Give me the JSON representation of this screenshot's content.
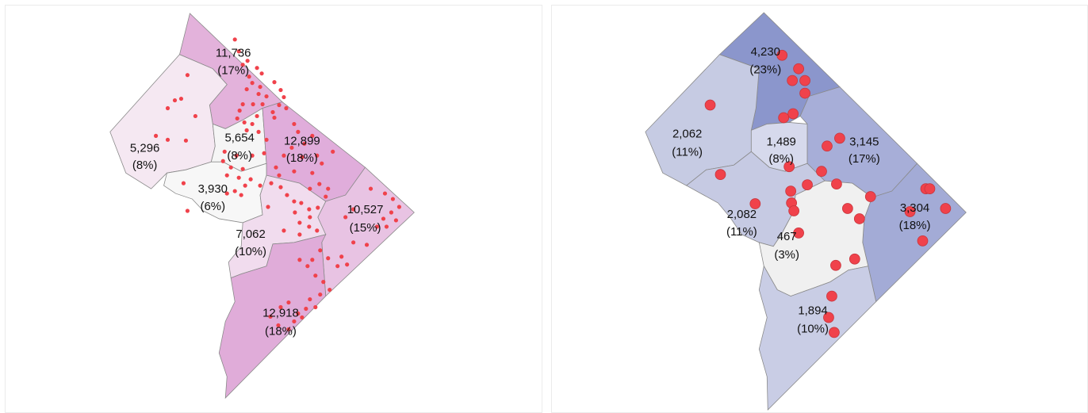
{
  "maps": [
    {
      "id": "left",
      "dot_color": "#f0424b",
      "regions": [
        {
          "name": "north",
          "count": "11,736",
          "pct": "(17%)",
          "fill": "#e3b2db"
        },
        {
          "name": "west",
          "count": "5,296",
          "pct": "(8%)",
          "fill": "#f5e8f2"
        },
        {
          "name": "center",
          "count": "5,654",
          "pct": "(8%)",
          "fill": "#f5f5f5"
        },
        {
          "name": "north-east",
          "count": "12,899",
          "pct": "(18%)",
          "fill": "#e0addb"
        },
        {
          "name": "south-west",
          "count": "3,930",
          "pct": "(6%)",
          "fill": "#f7f7f7"
        },
        {
          "name": "east",
          "count": "10,527",
          "pct": "(15%)",
          "fill": "#e8c3e3"
        },
        {
          "name": "mid-south",
          "count": "7,062",
          "pct": "(10%)",
          "fill": "#f1dcee"
        },
        {
          "name": "south",
          "count": "12,918",
          "pct": "(18%)",
          "fill": "#e0acd9"
        }
      ]
    },
    {
      "id": "right",
      "dot_color": "#f0424b",
      "regions": [
        {
          "name": "north",
          "count": "4,230",
          "pct": "(23%)",
          "fill": "#8b96cc"
        },
        {
          "name": "west",
          "count": "2,062",
          "pct": "(11%)",
          "fill": "#c6cbe3"
        },
        {
          "name": "center",
          "count": "1,489",
          "pct": "(8%)",
          "fill": "#d6d9ec"
        },
        {
          "name": "north-east",
          "count": "3,145",
          "pct": "(17%)",
          "fill": "#a7aed8"
        },
        {
          "name": "south-west",
          "count": "2,082",
          "pct": "(11%)",
          "fill": "#c6cae3"
        },
        {
          "name": "east",
          "count": "3,304",
          "pct": "(18%)",
          "fill": "#a3abd6"
        },
        {
          "name": "mid-south",
          "count": "467",
          "pct": "(3%)",
          "fill": "#f0f0f0"
        },
        {
          "name": "south",
          "count": "1,894",
          "pct": "(10%)",
          "fill": "#c9cde5"
        }
      ]
    }
  ]
}
